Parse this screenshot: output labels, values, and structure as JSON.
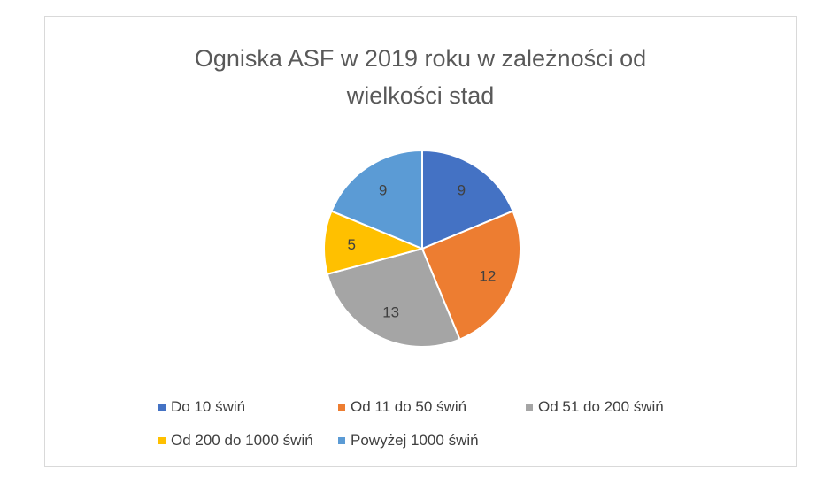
{
  "chart_data": {
    "type": "pie",
    "title": "Ogniska ASF w 2019 roku w zależności od wielkości stad",
    "title_lines": [
      "Ogniska ASF w 2019 roku w zależności od",
      "wielkości stad"
    ],
    "categories": [
      "Do 10 świń",
      "Od 11 do 50 świń",
      "Od 51 do 200 świń",
      "Od 200 do 1000 świń",
      "Powyżej 1000 świń"
    ],
    "values": [
      9,
      12,
      13,
      5,
      9
    ],
    "colors": [
      "#4472c4",
      "#ed7d31",
      "#a5a5a5",
      "#ffc000",
      "#5b9bd5"
    ],
    "data_labels": true,
    "legend_position": "bottom"
  }
}
